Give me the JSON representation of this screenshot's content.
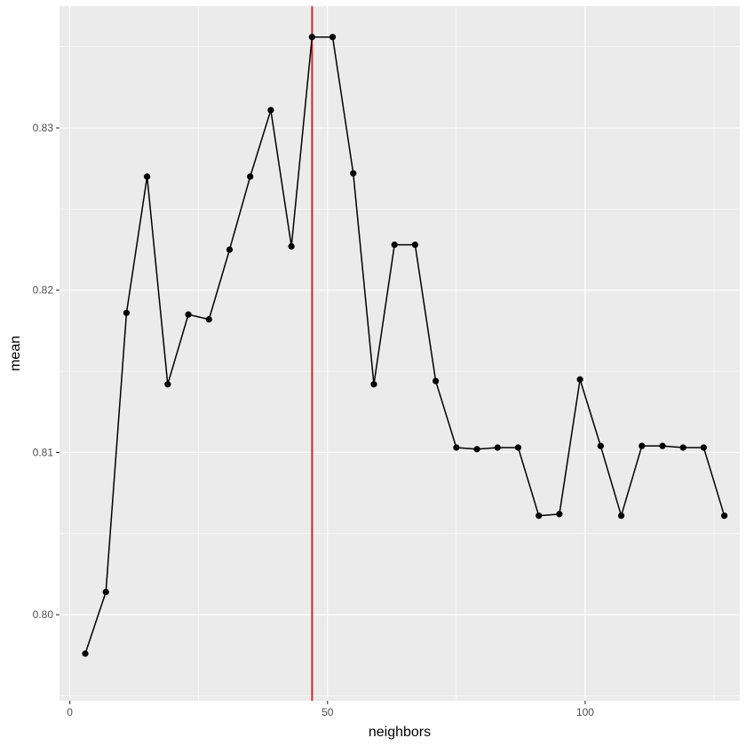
{
  "chart_data": {
    "type": "line",
    "title": "",
    "xlabel": "neighbors",
    "ylabel": "mean",
    "xlim": [
      -2,
      130
    ],
    "ylim": [
      0.7947,
      0.8375
    ],
    "x_ticks": [
      0,
      50,
      100
    ],
    "x_tick_labels": [
      "0",
      "50",
      "100"
    ],
    "y_ticks": [
      0.8,
      0.81,
      0.82,
      0.83
    ],
    "y_tick_labels": [
      "0.80",
      "0.81",
      "0.82",
      "0.83"
    ],
    "grid": true,
    "legend": "none",
    "colors": {
      "panel_background": "#ebebeb",
      "grid": "#ffffff",
      "line": "#000000",
      "points": "#000000",
      "reference_line": "#e00000"
    },
    "reference_vline_x": 47,
    "series": [
      {
        "x": [
          3,
          7,
          11,
          15,
          19,
          23,
          27,
          31,
          35,
          39,
          43,
          47,
          51,
          55,
          59,
          63,
          67,
          71,
          75,
          79,
          83,
          87,
          91,
          95,
          99,
          103,
          107,
          111,
          115,
          119,
          123,
          127
        ],
        "values": [
          0.7976,
          0.8014,
          0.8186,
          0.827,
          0.8142,
          0.8185,
          0.8182,
          0.8225,
          0.827,
          0.8311,
          0.8227,
          0.8356,
          0.8356,
          0.8272,
          0.8142,
          0.8228,
          0.8228,
          0.8144,
          0.8103,
          0.8102,
          0.8103,
          0.8103,
          0.8061,
          0.8062,
          0.8145,
          0.8104,
          0.8061,
          0.8104,
          0.8104,
          0.8103,
          0.8103,
          0.8061
        ]
      }
    ]
  }
}
